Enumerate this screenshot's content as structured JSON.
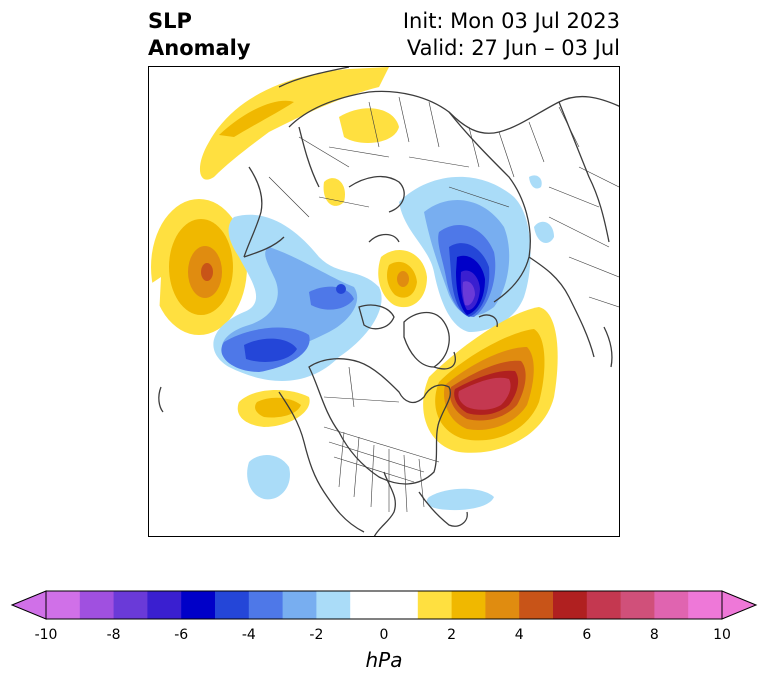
{
  "title": {
    "left_line1": "SLP",
    "left_line2": "Anomaly",
    "right_line1": "Init: Mon 03 Jul 2023",
    "right_line2": "Valid: 27 Jun – 03 Jul"
  },
  "colorbar": {
    "units": "hPa",
    "ticks": [
      "-10",
      "-8",
      "-6",
      "-4",
      "-2",
      "0",
      "2",
      "4",
      "6",
      "8",
      "10"
    ],
    "colors": [
      "#d070e8",
      "#a050e0",
      "#6a3ad8",
      "#3a1fd0",
      "#0000c8",
      "#2446d8",
      "#4e78e8",
      "#78aef0",
      "#aadcf8",
      "#ffffff",
      "#ffffff",
      "#ffe040",
      "#f0b800",
      "#e08c10",
      "#c85418",
      "#b02020",
      "#c43850",
      "#d0507a",
      "#e064b0",
      "#ee78d8"
    ],
    "extend_low_color": "#d070e8",
    "extend_high_color": "#ee78d8"
  },
  "map": {
    "projection": "north polar stereographic",
    "variable": "sea level pressure anomaly"
  }
}
